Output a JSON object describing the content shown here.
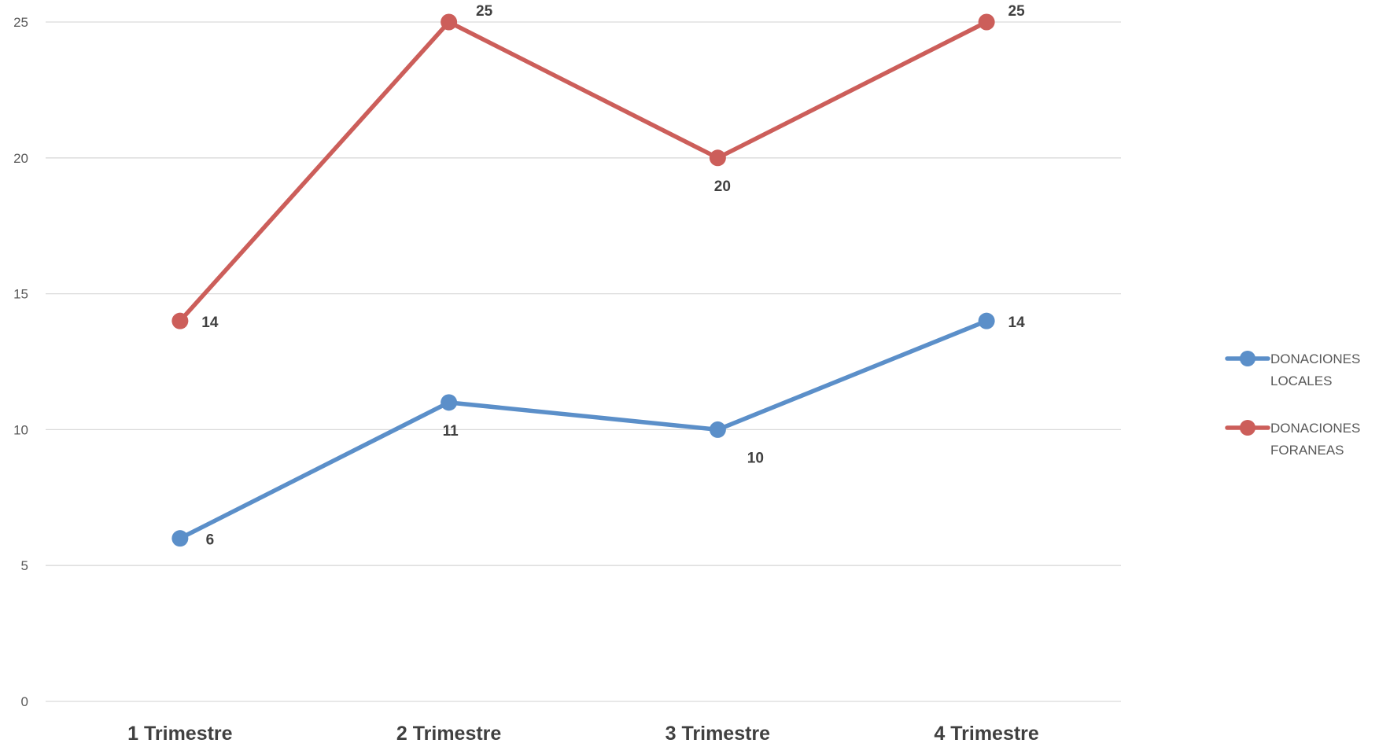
{
  "chart_data": {
    "type": "line",
    "categories": [
      "1 Trimestre",
      "2 Trimestre",
      "3 Trimestre",
      "4 Trimestre"
    ],
    "yticks": [
      "0",
      "5",
      "10",
      "15",
      "20",
      "25"
    ],
    "ylim": [
      0,
      25
    ],
    "grid": true,
    "legend_position": "right",
    "series": [
      {
        "name": "DONACIONES LOCALES",
        "legend_lines": [
          "DONACIONES",
          "LOCALES"
        ],
        "color": "#5B8FC9",
        "values": [
          6,
          11,
          10,
          14
        ],
        "value_labels": [
          "6",
          "11",
          "10",
          "14"
        ]
      },
      {
        "name": "DONACIONES FORANEAS",
        "legend_lines": [
          "DONACIONES",
          "FORANEAS"
        ],
        "color": "#CC5E5A",
        "values": [
          14,
          25,
          20,
          25
        ],
        "value_labels": [
          "14",
          "25",
          "20",
          "25"
        ]
      }
    ]
  }
}
